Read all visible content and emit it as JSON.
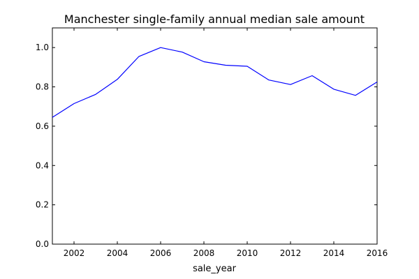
{
  "chart_data": {
    "type": "line",
    "title": "Manchester single-family annual median sale amount",
    "xlabel": "sale_year",
    "ylabel": "",
    "xlim": [
      2001,
      2016
    ],
    "ylim": [
      0.0,
      1.1
    ],
    "x_ticks": [
      2002,
      2004,
      2006,
      2008,
      2010,
      2012,
      2014,
      2016
    ],
    "y_ticks": [
      0.0,
      0.2,
      0.4,
      0.6,
      0.8,
      1.0
    ],
    "x_tick_labels": [
      "2002",
      "2004",
      "2006",
      "2008",
      "2010",
      "2012",
      "2014",
      "2016"
    ],
    "y_tick_labels": [
      "0.0",
      "0.2",
      "0.4",
      "0.6",
      "0.8",
      "1.0"
    ],
    "grid": false,
    "legend": "none",
    "series": [
      {
        "color": "#0000ff",
        "x": [
          2001,
          2002,
          2003,
          2004,
          2005,
          2006,
          2007,
          2008,
          2009,
          2010,
          2011,
          2012,
          2013,
          2014,
          2015,
          2016
        ],
        "values": [
          0.645,
          0.715,
          0.762,
          0.838,
          0.955,
          1.0,
          0.977,
          0.928,
          0.91,
          0.905,
          0.835,
          0.812,
          0.857,
          0.788,
          0.757,
          0.825
        ]
      }
    ]
  }
}
